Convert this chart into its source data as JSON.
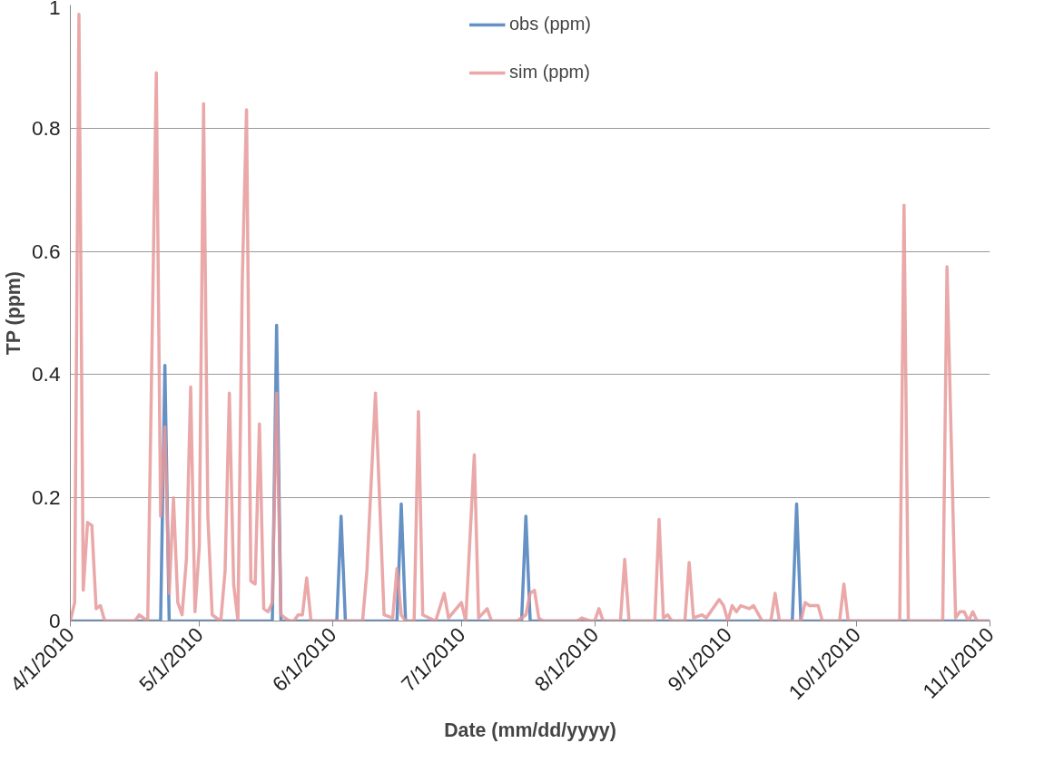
{
  "chart_data": {
    "type": "line",
    "xlabel": "Date (mm/dd/yyyy)",
    "ylabel": "TP (ppm)",
    "xlim": [
      "2010-04-01",
      "2010-11-01"
    ],
    "xticks": [
      {
        "value": "2010-04-01",
        "label": "4/1/2010"
      },
      {
        "value": "2010-05-01",
        "label": "5/1/2010"
      },
      {
        "value": "2010-06-01",
        "label": "6/1/2010"
      },
      {
        "value": "2010-07-01",
        "label": "7/1/2010"
      },
      {
        "value": "2010-08-01",
        "label": "8/1/2010"
      },
      {
        "value": "2010-09-01",
        "label": "9/1/2010"
      },
      {
        "value": "2010-10-01",
        "label": "10/1/2010"
      },
      {
        "value": "2010-11-01",
        "label": "11/1/2010"
      }
    ],
    "ylim": [
      0,
      1
    ],
    "yticks": [
      0,
      0.2,
      0.4,
      0.6,
      0.8,
      1
    ],
    "grid": "y",
    "legend": "top",
    "marker": "none",
    "line_style": "solid",
    "series": [
      {
        "name": "obs (ppm)",
        "color": "#4a7ebb",
        "x": [
          "2010-04-01",
          "2010-04-22",
          "2010-04-23",
          "2010-04-24",
          "2010-05-18",
          "2010-05-19",
          "2010-05-20",
          "2010-06-02",
          "2010-06-03",
          "2010-06-04",
          "2010-06-16",
          "2010-06-17",
          "2010-06-18",
          "2010-07-15",
          "2010-07-16",
          "2010-07-17",
          "2010-09-16",
          "2010-09-17",
          "2010-09-18",
          "2010-11-01"
        ],
        "values": [
          0,
          0,
          0.415,
          0,
          0,
          0.48,
          0,
          0,
          0.17,
          0,
          0,
          0.19,
          0,
          0,
          0.17,
          0,
          0,
          0.19,
          0,
          0
        ]
      },
      {
        "name": "sim (ppm)",
        "color": "#e6999a",
        "x": [
          "2010-04-01",
          "2010-04-02",
          "2010-04-03",
          "2010-04-04",
          "2010-04-05",
          "2010-04-06",
          "2010-04-07",
          "2010-04-08",
          "2010-04-09",
          "2010-04-16",
          "2010-04-17",
          "2010-04-19",
          "2010-04-21",
          "2010-04-22",
          "2010-04-23",
          "2010-04-24",
          "2010-04-25",
          "2010-04-26",
          "2010-04-27",
          "2010-04-28",
          "2010-04-29",
          "2010-04-30",
          "2010-05-01",
          "2010-05-02",
          "2010-05-03",
          "2010-05-04",
          "2010-05-06",
          "2010-05-07",
          "2010-05-08",
          "2010-05-09",
          "2010-05-10",
          "2010-05-11",
          "2010-05-12",
          "2010-05-13",
          "2010-05-14",
          "2010-05-15",
          "2010-05-16",
          "2010-05-17",
          "2010-05-18",
          "2010-05-19",
          "2010-05-20",
          "2010-05-21",
          "2010-05-22",
          "2010-05-23",
          "2010-05-24",
          "2010-05-25",
          "2010-05-26",
          "2010-05-27",
          "2010-06-08",
          "2010-06-09",
          "2010-06-11",
          "2010-06-13",
          "2010-06-15",
          "2010-06-16",
          "2010-06-17",
          "2010-06-18",
          "2010-06-20",
          "2010-06-21",
          "2010-06-22",
          "2010-06-25",
          "2010-06-27",
          "2010-06-28",
          "2010-07-01",
          "2010-07-02",
          "2010-07-04",
          "2010-07-05",
          "2010-07-07",
          "2010-07-08",
          "2010-07-14",
          "2010-07-16",
          "2010-07-17",
          "2010-07-18",
          "2010-07-19",
          "2010-07-20",
          "2010-07-28",
          "2010-07-29",
          "2010-07-31",
          "2010-08-01",
          "2010-08-02",
          "2010-08-03",
          "2010-08-07",
          "2010-08-08",
          "2010-08-09",
          "2010-08-15",
          "2010-08-16",
          "2010-08-17",
          "2010-08-18",
          "2010-08-19",
          "2010-08-22",
          "2010-08-23",
          "2010-08-24",
          "2010-08-26",
          "2010-08-27",
          "2010-08-29",
          "2010-08-30",
          "2010-08-31",
          "2010-09-01",
          "2010-09-02",
          "2010-09-03",
          "2010-09-04",
          "2010-09-06",
          "2010-09-07",
          "2010-09-09",
          "2010-09-11",
          "2010-09-12",
          "2010-09-13",
          "2010-09-18",
          "2010-09-19",
          "2010-09-20",
          "2010-09-21",
          "2010-09-22",
          "2010-09-23",
          "2010-09-27",
          "2010-09-28",
          "2010-09-29",
          "2010-10-11",
          "2010-10-12",
          "2010-10-13",
          "2010-10-21",
          "2010-10-22",
          "2010-10-24",
          "2010-10-25",
          "2010-10-26",
          "2010-10-27",
          "2010-10-28",
          "2010-10-29",
          "2010-11-01"
        ],
        "values": [
          0,
          0.03,
          0.985,
          0.05,
          0.16,
          0.155,
          0.02,
          0.025,
          0,
          0,
          0.01,
          0,
          0.89,
          0.17,
          0.315,
          0.045,
          0.2,
          0.03,
          0.01,
          0.1,
          0.38,
          0.015,
          0.12,
          0.84,
          0.17,
          0.01,
          0,
          0.08,
          0.37,
          0.06,
          0,
          0.55,
          0.83,
          0.065,
          0.06,
          0.32,
          0.02,
          0.015,
          0.03,
          0.37,
          0.01,
          0.005,
          0,
          0,
          0.01,
          0.01,
          0.07,
          0,
          0,
          0.08,
          0.37,
          0.01,
          0.005,
          0.085,
          0.01,
          0,
          0,
          0.34,
          0.01,
          0,
          0.045,
          0.005,
          0.03,
          0,
          0.27,
          0.005,
          0.02,
          0,
          0,
          0.01,
          0.045,
          0.05,
          0.005,
          0,
          0,
          0.005,
          0,
          0,
          0.02,
          0,
          0,
          0.1,
          0,
          0,
          0.165,
          0.005,
          0.01,
          0,
          0,
          0.095,
          0.005,
          0.01,
          0.005,
          0.025,
          0.035,
          0.025,
          0,
          0.025,
          0.015,
          0.025,
          0.02,
          0.025,
          0,
          0,
          0.045,
          0,
          0,
          0.03,
          0.025,
          0.025,
          0.025,
          0,
          0,
          0.06,
          0,
          0,
          0.675,
          0,
          0,
          0.575,
          0.005,
          0.015,
          0.015,
          0,
          0.015,
          0,
          0
        ]
      }
    ]
  }
}
